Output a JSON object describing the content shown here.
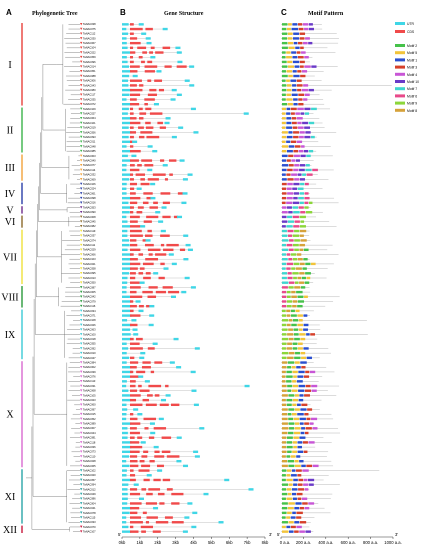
{
  "panels": {
    "a": {
      "letter": "A",
      "title": "Phylogenetic Tree"
    },
    "b": {
      "letter": "B",
      "title": "Gene Structure"
    },
    "c": {
      "letter": "C",
      "title": "Motif Pattern"
    }
  },
  "gene_prefix": "TaNAC",
  "clades": [
    {
      "label": "I",
      "color": "#e8413c",
      "count": 18
    },
    {
      "label": "II",
      "color": "#3cb34a",
      "count": 10
    },
    {
      "label": "III",
      "color": "#f2a23a",
      "count": 6
    },
    {
      "label": "IV",
      "color": "#2a3fa8",
      "count": 5
    },
    {
      "label": "V",
      "color": "#6e2c8c",
      "count": 2
    },
    {
      "label": "VI",
      "color": "#8c6a2a",
      "count": 3
    },
    {
      "label": "VII",
      "color": "#f0e03c",
      "count": 12
    },
    {
      "label": "VIII",
      "color": "#2a9a3c",
      "count": 5
    },
    {
      "label": "IX",
      "color": "#3ccbd6",
      "count": 11
    },
    {
      "label": "X",
      "color": "#d96ad0",
      "count": 23
    },
    {
      "label": "XI",
      "color": "#2aa6a8",
      "count": 12
    },
    {
      "label": "XII",
      "color": "#c8183c",
      "count": 2
    }
  ],
  "gene_structure": {
    "legend": [
      {
        "name": "UTR",
        "color": "#3fd6e6"
      },
      {
        "name": "CDS",
        "color": "#f04a4a"
      }
    ],
    "axis_ticks": [
      "0kb",
      "1kb",
      "2kb",
      "3kb",
      "4kb",
      "5kb",
      "6kb",
      "7kb",
      "8kb"
    ],
    "five_prime": "5'",
    "three_prime": "3'"
  },
  "motifs": {
    "legend": [
      {
        "name": "Motif 2",
        "color": "#46c24a"
      },
      {
        "name": "Motif 5",
        "color": "#f2c43a"
      },
      {
        "name": "Motif 1",
        "color": "#2a4fd0"
      },
      {
        "name": "Motif 3",
        "color": "#d6402a"
      },
      {
        "name": "Motif 4",
        "color": "#c856d6"
      },
      {
        "name": "Motif 10",
        "color": "#6a3ac8"
      },
      {
        "name": "Motif 7",
        "color": "#3fd6d0"
      },
      {
        "name": "Motif 6",
        "color": "#e84a8a"
      },
      {
        "name": "Motif 9",
        "color": "#8cd63a"
      },
      {
        "name": "Motif 8",
        "color": "#d6a23a"
      }
    ],
    "axis_ticks": [
      "0 a.a.",
      "200 a.a.",
      "400 a.a.",
      "600 a.a.",
      "800 a.a.",
      "1000 a.a."
    ],
    "five_prime": "5'",
    "three_prime": "3'"
  }
}
